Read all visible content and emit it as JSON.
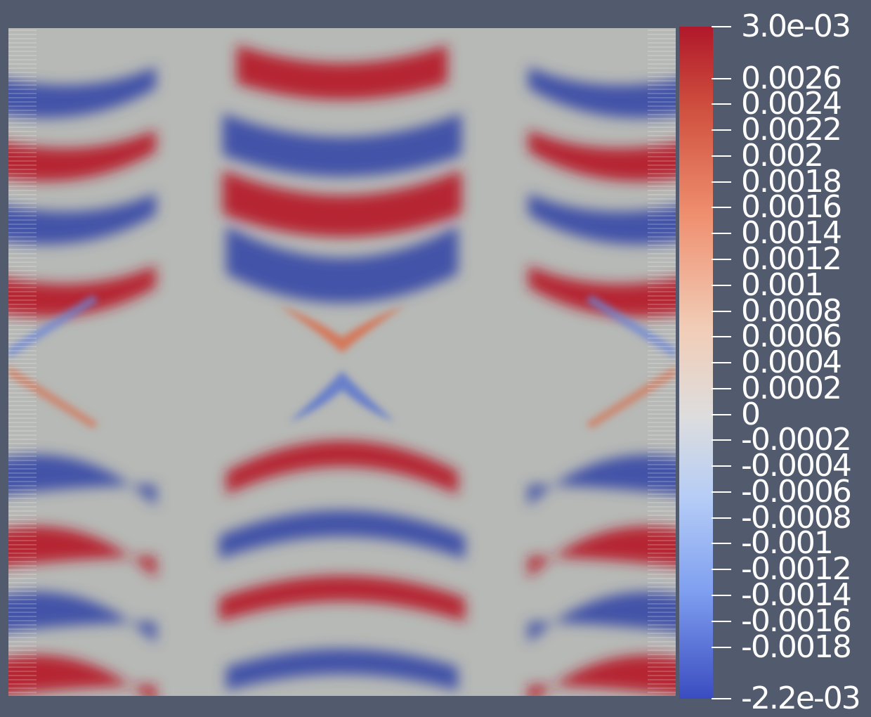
{
  "colors": {
    "background": "#525a6e",
    "neutral": "#b7b9b6",
    "positive_max": "#b0182a",
    "negative_max": "#3a4ca8"
  },
  "colorbar": {
    "max_label": "3.0e-03",
    "min_label": "-2.2e-03",
    "min_value": -0.0022,
    "max_value": 0.003,
    "ticks": [
      {
        "value": 0.0026,
        "label": "0.0026"
      },
      {
        "value": 0.0024,
        "label": "0.0024"
      },
      {
        "value": 0.0022,
        "label": "0.0022"
      },
      {
        "value": 0.002,
        "label": "0.002"
      },
      {
        "value": 0.0018,
        "label": "0.0018"
      },
      {
        "value": 0.0016,
        "label": "0.0016"
      },
      {
        "value": 0.0014,
        "label": "0.0014"
      },
      {
        "value": 0.0012,
        "label": "0.0012"
      },
      {
        "value": 0.001,
        "label": "0.001"
      },
      {
        "value": 0.0008,
        "label": "0.0008"
      },
      {
        "value": 0.0006,
        "label": "0.0006"
      },
      {
        "value": 0.0004,
        "label": "0.0004"
      },
      {
        "value": 0.0002,
        "label": "0.0002"
      },
      {
        "value": 0,
        "label": "0"
      },
      {
        "value": -0.0002,
        "label": "-0.0002"
      },
      {
        "value": -0.0004,
        "label": "-0.0004"
      },
      {
        "value": -0.0006,
        "label": "-0.0006"
      },
      {
        "value": -0.0008,
        "label": "-0.0008"
      },
      {
        "value": -0.001,
        "label": "-0.001"
      },
      {
        "value": -0.0012,
        "label": "-0.0012"
      },
      {
        "value": -0.0014,
        "label": "-0.0014"
      },
      {
        "value": -0.0016,
        "label": "-0.0016"
      },
      {
        "value": -0.0018,
        "label": "-0.0018"
      }
    ]
  }
}
